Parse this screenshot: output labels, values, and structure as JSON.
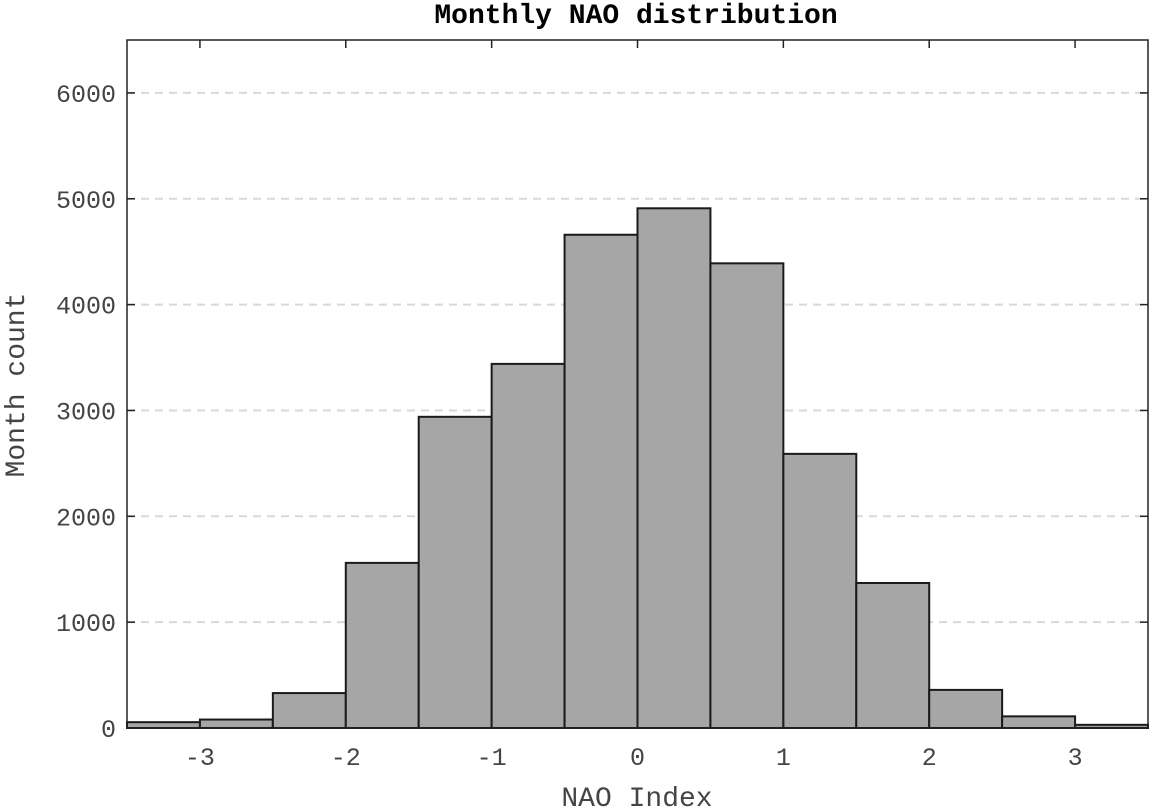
{
  "chart_data": {
    "type": "bar",
    "title": "Monthly NAO distribution",
    "xlabel": "NAO Index",
    "ylabel": "Month count",
    "xlim": [
      -3.5,
      3.5
    ],
    "ylim": [
      0,
      6500
    ],
    "bin_edges": [
      -3.5,
      -3.0,
      -2.5,
      -2.0,
      -1.5,
      -1.0,
      -0.5,
      0.0,
      0.5,
      1.0,
      1.5,
      2.0,
      2.5,
      3.0,
      3.5
    ],
    "values": [
      55,
      80,
      330,
      1560,
      2940,
      3440,
      4660,
      4910,
      4390,
      2590,
      1370,
      360,
      110,
      30
    ],
    "x_ticks": [
      -3,
      -2,
      -1,
      0,
      1,
      2,
      3
    ],
    "x_tick_labels": [
      "-3",
      "-2",
      "-1",
      "0",
      "1",
      "2",
      "3"
    ],
    "y_ticks": [
      0,
      1000,
      2000,
      3000,
      4000,
      5000,
      6000
    ],
    "y_tick_labels": [
      "0",
      "1000",
      "2000",
      "3000",
      "4000",
      "5000",
      "6000"
    ],
    "grid": "horizontal dashed",
    "colors": {
      "bar_fill": "#a6a6a6",
      "bar_edge": "#1a1a1a",
      "grid": "#d9d9d9"
    }
  }
}
